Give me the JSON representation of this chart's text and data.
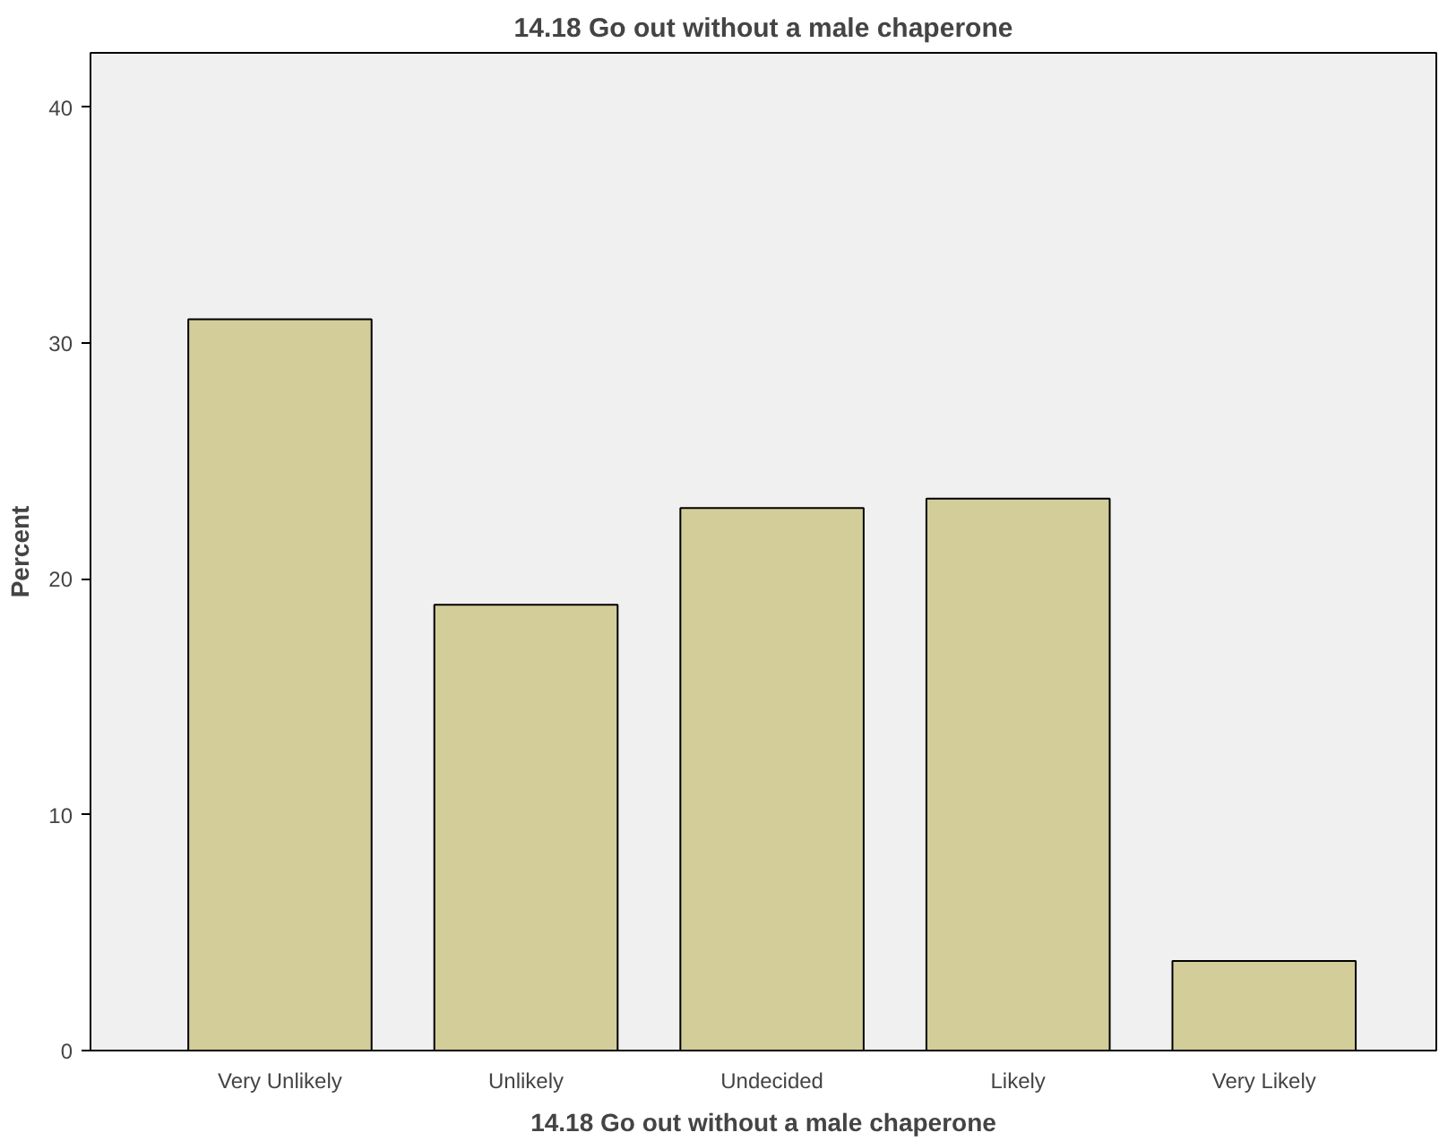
{
  "chart_data": {
    "type": "bar",
    "title": "14.18 Go out without a male chaperone",
    "xlabel": "14.18 Go out without a male chaperone",
    "ylabel": "Percent",
    "categories": [
      "Very Unlikely",
      "Unlikely",
      "Undecided",
      "Likely",
      "Very Likely"
    ],
    "values": [
      31.0,
      18.9,
      23.0,
      23.4,
      3.8
    ],
    "color": "#d3ce99",
    "ylim": [
      0,
      42.3
    ],
    "yticks": [
      0,
      10,
      20,
      30,
      40
    ],
    "grid": false
  }
}
